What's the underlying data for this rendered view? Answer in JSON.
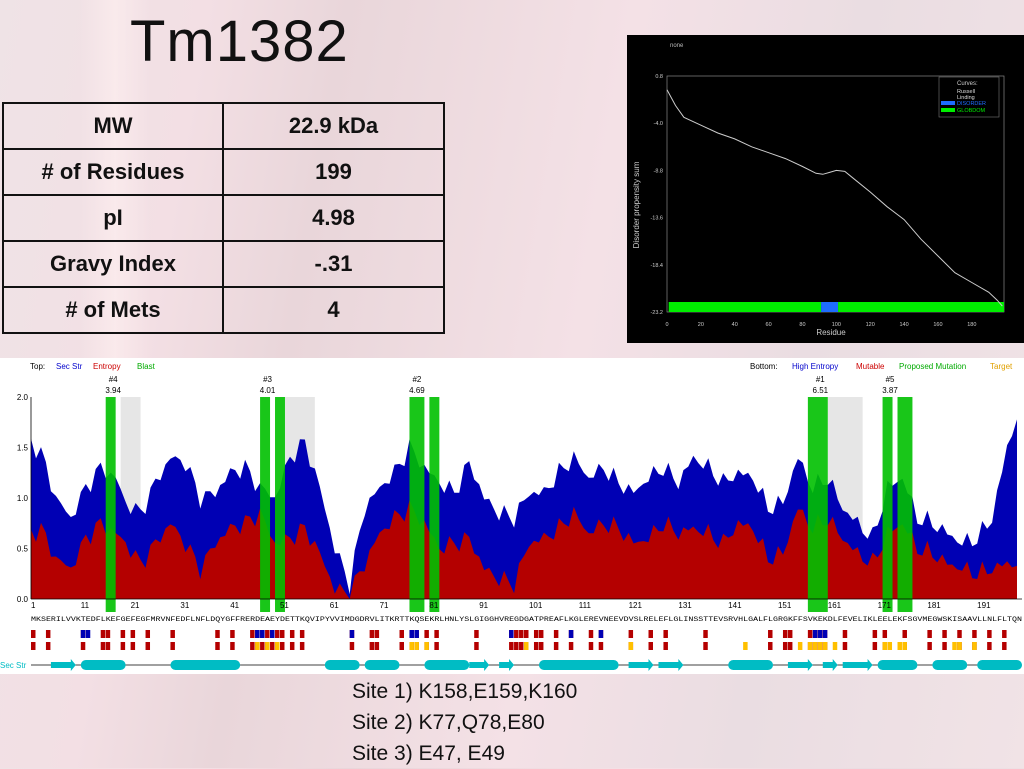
{
  "slide": {
    "title": "Tm1382"
  },
  "properties_table": [
    {
      "label": "MW",
      "value": "22.9 kDa"
    },
    {
      "label": "# of Residues",
      "value": "199"
    },
    {
      "label": "pI",
      "value": "4.98"
    },
    {
      "label": "Gravy Index",
      "value": "-.31"
    },
    {
      "label": "# of Mets",
      "value": "4"
    }
  ],
  "disorder_plot": {
    "top_label": "none",
    "ylabel": "Disorder propensity sum",
    "xlabel": "Residue",
    "yticks": [
      "0.8",
      "-4.0",
      "-8.8",
      "-13.6",
      "-18.4",
      "-23.2"
    ],
    "xticks": [
      "0",
      "20",
      "40",
      "60",
      "80",
      "100",
      "120",
      "140",
      "160",
      "180"
    ],
    "legend_title": "Curves:",
    "legend_items": [
      "Russell",
      "Linding",
      "DISORDER",
      "GLOBDOM"
    ],
    "colors": {
      "background": "#000000",
      "curve": "#cccccc",
      "globdom": "#00ee00",
      "disorder": "#1e6cff"
    },
    "chart_data": {
      "type": "line",
      "x": [
        0,
        5,
        10,
        20,
        30,
        40,
        50,
        60,
        70,
        80,
        88,
        92,
        96,
        100,
        105,
        110,
        120,
        130,
        140,
        150,
        160,
        170,
        180,
        190,
        195,
        198
      ],
      "y": [
        -0.6,
        -2.2,
        -3.4,
        -4.2,
        -5.0,
        -5.6,
        -6.4,
        -7.0,
        -7.6,
        -8.4,
        -9.1,
        -9.2,
        -9.0,
        -8.8,
        -8.9,
        -9.6,
        -11.0,
        -12.5,
        -13.8,
        -15.8,
        -17.5,
        -19.2,
        -20.2,
        -21.2,
        -22.0,
        -22.6
      ],
      "ylim": [
        -23.2,
        0.8
      ],
      "xlim": [
        0,
        199
      ],
      "regions": [
        {
          "name": "GLOBDOM",
          "from": 1,
          "to": 91
        },
        {
          "name": "DISORDER",
          "from": 91,
          "to": 101
        },
        {
          "name": "GLOBDOM",
          "from": 101,
          "to": 199
        }
      ]
    }
  },
  "entropy_profile": {
    "legend_top_prefix": "Top:",
    "legend_top": [
      {
        "text": "Sec Str",
        "color": "#0000cc"
      },
      {
        "text": "Entropy",
        "color": "#cc0000"
      },
      {
        "text": "Blast",
        "color": "#00aa00"
      }
    ],
    "legend_bottom_prefix": "Bottom:",
    "legend_bottom": [
      {
        "text": "High Entropy",
        "color": "#0000cc"
      },
      {
        "text": "Mutable",
        "color": "#cc0000"
      },
      {
        "text": "Proposed Mutation",
        "color": "#00aa00"
      },
      {
        "text": "Target",
        "color": "#e0a000"
      }
    ],
    "yticks": [
      "2.0",
      "1.5",
      "1.0",
      "0.5",
      "0.0"
    ],
    "xticks": [
      "1",
      "11",
      "21",
      "31",
      "41",
      "51",
      "61",
      "71",
      "81",
      "91",
      "101",
      "111",
      "121",
      "131",
      "141",
      "151",
      "161",
      "171",
      "181",
      "191"
    ],
    "sites": [
      {
        "name": "#4",
        "score": "3.94",
        "residue": 17
      },
      {
        "name": "#3",
        "score": "4.01",
        "residue": 48
      },
      {
        "name": "#2",
        "score": "4.69",
        "residue": 78
      },
      {
        "name": "#1",
        "score": "6.51",
        "residue": 159
      },
      {
        "name": "#5",
        "score": "3.87",
        "residue": 173
      }
    ],
    "sequence": "MKSERILVVKTEDFLKEFGEFEGFMRVNFEDFLNFLDQYGFFRERDEAEYDETTKQVIPYVVIMDGDRVLITKRTTKQSEKRLHNLYSLGIGGHVREGDGATPREAFLKGLEREVNEEVDVSLRELEFLGLINSSTTEVSRVHLGALFLGRGKFFSVKEKDLFEVELIKLEELEKFSGVMEGWSKISAAVLLNLFLTQN",
    "secstr_label": "Sec Str",
    "colors": {
      "blue": "#0000b4",
      "red": "#b40000",
      "green": "#00c000",
      "gray": "#e6e6e6",
      "cyan": "#00bcc4",
      "target": "#ffc000"
    },
    "chart_data": {
      "type": "area",
      "ylim": [
        0,
        2.0
      ],
      "xlim": [
        1,
        199
      ],
      "series": [
        {
          "name": "Sec Str",
          "x": [
            1,
            3,
            6,
            9,
            12,
            15,
            18,
            20,
            23,
            26,
            29,
            32,
            35,
            38,
            41,
            44,
            47,
            50,
            53,
            56,
            59,
            62,
            65,
            68,
            71,
            74,
            77,
            80,
            83,
            86,
            89,
            92,
            95,
            98,
            101,
            104,
            107,
            110,
            113,
            116,
            119,
            122,
            125,
            128,
            131,
            134,
            137,
            140,
            143,
            146,
            149,
            152,
            155,
            158,
            161,
            164,
            167,
            170,
            173,
            176,
            179,
            182,
            185,
            188,
            191,
            194,
            197,
            199
          ],
          "values": [
            1.55,
            1.45,
            1.0,
            0.8,
            1.1,
            1.3,
            1.2,
            0.95,
            0.85,
            1.15,
            1.4,
            1.35,
            1.0,
            1.05,
            1.25,
            1.3,
            1.1,
            1.0,
            1.4,
            1.55,
            1.1,
            0.5,
            0.15,
            0.9,
            1.1,
            1.25,
            1.5,
            1.3,
            1.15,
            1.05,
            1.35,
            1.0,
            0.85,
            0.8,
            1.05,
            1.05,
            1.25,
            1.4,
            1.2,
            1.3,
            1.15,
            1.05,
            1.2,
            1.3,
            1.15,
            1.4,
            1.3,
            1.15,
            1.25,
            1.2,
            0.9,
            0.95,
            1.4,
            1.1,
            1.2,
            0.9,
            0.75,
            0.6,
            1.1,
            1.2,
            0.8,
            0.75,
            0.65,
            0.55,
            0.6,
            0.8,
            1.5,
            1.8
          ]
        },
        {
          "name": "Entropy",
          "x": [
            1,
            3,
            6,
            9,
            12,
            15,
            18,
            20,
            23,
            26,
            29,
            32,
            35,
            38,
            41,
            44,
            47,
            50,
            53,
            56,
            59,
            62,
            65,
            68,
            71,
            74,
            77,
            80,
            83,
            86,
            89,
            92,
            95,
            98,
            101,
            104,
            107,
            110,
            113,
            116,
            119,
            122,
            125,
            128,
            131,
            134,
            137,
            140,
            143,
            146,
            149,
            152,
            155,
            158,
            161,
            164,
            167,
            170,
            173,
            176,
            179,
            182,
            185,
            188,
            191,
            194,
            197,
            199
          ],
          "values": [
            0.65,
            0.7,
            0.4,
            0.3,
            0.6,
            0.75,
            0.65,
            0.55,
            0.35,
            0.55,
            0.75,
            0.55,
            0.3,
            0.55,
            0.7,
            0.75,
            0.85,
            0.55,
            0.6,
            0.7,
            0.45,
            0.1,
            0.05,
            0.35,
            0.65,
            0.8,
            0.9,
            0.75,
            0.5,
            0.55,
            0.6,
            0.3,
            0.2,
            0.15,
            0.55,
            0.6,
            0.7,
            0.85,
            0.65,
            0.75,
            0.7,
            0.55,
            0.6,
            0.75,
            0.65,
            0.7,
            0.65,
            0.55,
            0.75,
            0.7,
            0.4,
            0.45,
            0.9,
            0.7,
            0.8,
            0.6,
            0.45,
            0.35,
            0.65,
            0.75,
            0.5,
            0.45,
            0.35,
            0.3,
            0.25,
            0.3,
            0.35,
            0.35
          ]
        }
      ]
    }
  },
  "site_list": [
    "Site 1) K158,E159,K160",
    "Site 2) K77,Q78,E80",
    "Site 3) E47, E49"
  ]
}
